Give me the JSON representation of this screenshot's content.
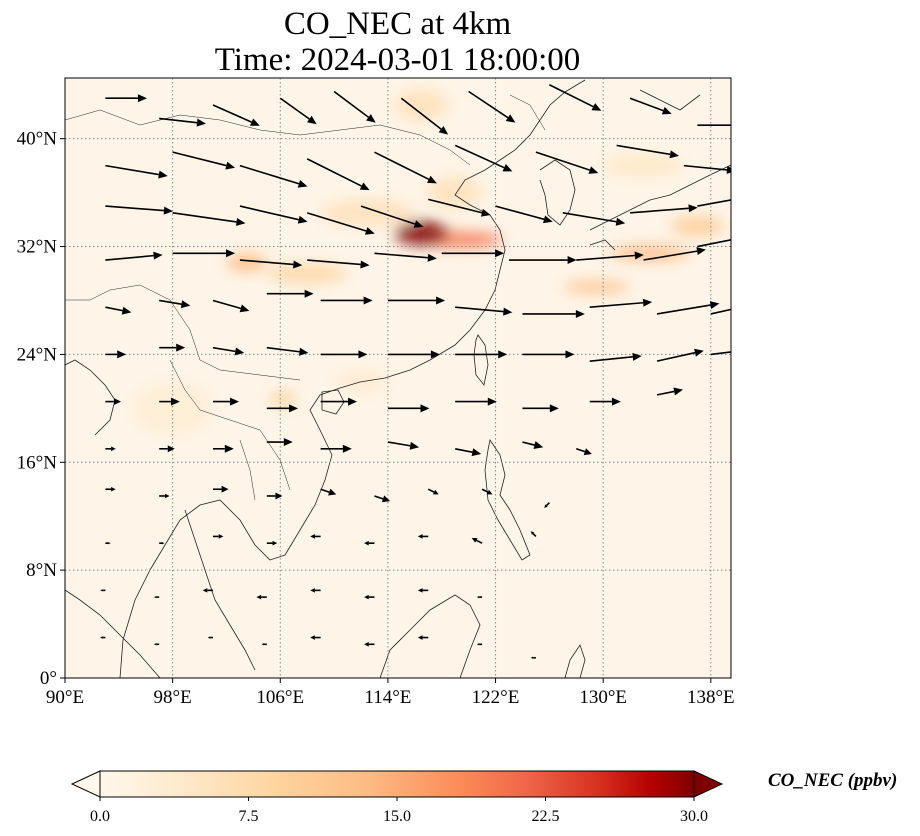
{
  "title": {
    "line1": "CO_NEC at 4km",
    "line2": "Time: 2024-03-01 18:00:00"
  },
  "colors": {
    "background_field": "#fef5e8",
    "coastline": "#222222",
    "gridline": "#888888",
    "vector": "#000000"
  },
  "chart_data": {
    "type": "heatmap",
    "variable": "CO_NEC",
    "units": "ppbv",
    "projection": "PlateCarree",
    "lon_range": [
      90,
      139.5
    ],
    "lat_range": [
      0,
      44.5
    ],
    "x_ticks": [
      "90°E",
      "98°E",
      "106°E",
      "114°E",
      "122°E",
      "130°E",
      "138°E"
    ],
    "x_tick_values": [
      90,
      98,
      106,
      114,
      122,
      130,
      138
    ],
    "y_ticks": [
      "0°",
      "8°N",
      "16°N",
      "24°N",
      "32°N",
      "40°N"
    ],
    "y_tick_values": [
      0,
      8,
      16,
      24,
      32,
      40
    ],
    "grid": true,
    "colormap": "OrRd",
    "colorbar": {
      "label": "CO_NEC (ppbv)",
      "ticks": [
        "0.0",
        "7.5",
        "15.0",
        "22.5",
        "30.0"
      ],
      "tick_values": [
        0,
        7.5,
        15,
        22.5,
        30
      ],
      "range": [
        0,
        30
      ],
      "extend": "both",
      "orientation": "horizontal"
    },
    "plumes": [
      {
        "lon": 116.5,
        "lat": 33.0,
        "value": 30,
        "spread_lon": 2.0,
        "spread_lat": 0.9
      },
      {
        "lon": 119.5,
        "lat": 32.5,
        "value": 20,
        "spread_lon": 3.0,
        "spread_lat": 0.6
      },
      {
        "lon": 103.5,
        "lat": 30.8,
        "value": 13,
        "spread_lon": 1.5,
        "spread_lat": 0.7
      },
      {
        "lon": 108.0,
        "lat": 30.0,
        "value": 8,
        "spread_lon": 3.0,
        "spread_lat": 0.8
      },
      {
        "lon": 129.5,
        "lat": 29.0,
        "value": 12,
        "spread_lon": 2.5,
        "spread_lat": 0.5
      },
      {
        "lon": 133.5,
        "lat": 31.5,
        "value": 13,
        "spread_lon": 3.0,
        "spread_lat": 0.6
      },
      {
        "lon": 137.0,
        "lat": 33.5,
        "value": 11,
        "spread_lon": 2.0,
        "spread_lat": 0.7
      },
      {
        "lon": 112.5,
        "lat": 34.5,
        "value": 6,
        "spread_lon": 3.5,
        "spread_lat": 1.0
      },
      {
        "lon": 106.2,
        "lat": 20.7,
        "value": 9,
        "spread_lon": 1.0,
        "spread_lat": 0.6
      },
      {
        "lon": 119.0,
        "lat": 36.0,
        "value": 6,
        "spread_lon": 2.0,
        "spread_lat": 1.2
      },
      {
        "lon": 133.0,
        "lat": 38.0,
        "value": 5,
        "spread_lon": 3.0,
        "spread_lat": 0.8
      },
      {
        "lon": 116.5,
        "lat": 42.5,
        "value": 6,
        "spread_lon": 2.0,
        "spread_lat": 1.2
      },
      {
        "lon": 98.0,
        "lat": 20.0,
        "value": 3,
        "spread_lon": 3.0,
        "spread_lat": 2.0
      },
      {
        "lon": 112.0,
        "lat": 22.0,
        "value": 4,
        "spread_lon": 2.0,
        "spread_lat": 0.8
      }
    ],
    "wind_vectors": [
      {
        "lon": 93,
        "lat": 43,
        "u": 8,
        "v": 0
      },
      {
        "lon": 97,
        "lat": 41.5,
        "u": 9,
        "v": -1
      },
      {
        "lon": 101,
        "lat": 42.5,
        "u": 9,
        "v": -4
      },
      {
        "lon": 106,
        "lat": 43,
        "u": 7,
        "v": -5
      },
      {
        "lon": 110,
        "lat": 43.5,
        "u": 8,
        "v": -6
      },
      {
        "lon": 115,
        "lat": 43,
        "u": 9,
        "v": -7
      },
      {
        "lon": 120,
        "lat": 43.5,
        "u": 9,
        "v": -6
      },
      {
        "lon": 126,
        "lat": 44,
        "u": 10,
        "v": -5
      },
      {
        "lon": 132,
        "lat": 43,
        "u": 8,
        "v": -3
      },
      {
        "lon": 137,
        "lat": 41,
        "u": 9,
        "v": 0
      },
      {
        "lon": 93,
        "lat": 38,
        "u": 12,
        "v": -2
      },
      {
        "lon": 98,
        "lat": 39,
        "u": 12,
        "v": -3
      },
      {
        "lon": 103,
        "lat": 38,
        "u": 13,
        "v": -4
      },
      {
        "lon": 108,
        "lat": 38.5,
        "u": 12,
        "v": -6
      },
      {
        "lon": 113,
        "lat": 39,
        "u": 12,
        "v": -6
      },
      {
        "lon": 119,
        "lat": 39.5,
        "u": 11,
        "v": -5
      },
      {
        "lon": 125,
        "lat": 39,
        "u": 12,
        "v": -4
      },
      {
        "lon": 131,
        "lat": 39.5,
        "u": 12,
        "v": -2
      },
      {
        "lon": 136,
        "lat": 38,
        "u": 10,
        "v": -1
      },
      {
        "lon": 93,
        "lat": 35,
        "u": 13,
        "v": -1
      },
      {
        "lon": 98,
        "lat": 34.5,
        "u": 14,
        "v": -2
      },
      {
        "lon": 103,
        "lat": 35,
        "u": 13,
        "v": -3
      },
      {
        "lon": 108,
        "lat": 34.5,
        "u": 13,
        "v": -4
      },
      {
        "lon": 112,
        "lat": 35,
        "u": 12,
        "v": -4
      },
      {
        "lon": 117,
        "lat": 35.5,
        "u": 12,
        "v": -3
      },
      {
        "lon": 122,
        "lat": 35,
        "u": 11,
        "v": -3
      },
      {
        "lon": 127,
        "lat": 34.5,
        "u": 12,
        "v": -2
      },
      {
        "lon": 132,
        "lat": 34.5,
        "u": 13,
        "v": 1
      },
      {
        "lon": 137,
        "lat": 35,
        "u": 11,
        "v": 2
      },
      {
        "lon": 93,
        "lat": 31,
        "u": 11,
        "v": 1
      },
      {
        "lon": 98,
        "lat": 31.5,
        "u": 12,
        "v": 0
      },
      {
        "lon": 103,
        "lat": 31,
        "u": 12,
        "v": -1
      },
      {
        "lon": 108,
        "lat": 31,
        "u": 12,
        "v": -1
      },
      {
        "lon": 113,
        "lat": 31.5,
        "u": 12,
        "v": -1
      },
      {
        "lon": 118,
        "lat": 31.5,
        "u": 12,
        "v": 0
      },
      {
        "lon": 123,
        "lat": 31,
        "u": 13,
        "v": 0
      },
      {
        "lon": 128,
        "lat": 31,
        "u": 13,
        "v": 1
      },
      {
        "lon": 133,
        "lat": 31,
        "u": 12,
        "v": 2
      },
      {
        "lon": 137,
        "lat": 32,
        "u": 10,
        "v": 2
      },
      {
        "lon": 93,
        "lat": 27.5,
        "u": 5,
        "v": -1
      },
      {
        "lon": 97,
        "lat": 28,
        "u": 6,
        "v": -1
      },
      {
        "lon": 101,
        "lat": 28,
        "u": 7,
        "v": -2
      },
      {
        "lon": 105,
        "lat": 28.5,
        "u": 9,
        "v": 0
      },
      {
        "lon": 109,
        "lat": 28,
        "u": 10,
        "v": 0
      },
      {
        "lon": 114,
        "lat": 28,
        "u": 11,
        "v": 0
      },
      {
        "lon": 119,
        "lat": 27.5,
        "u": 11,
        "v": -1
      },
      {
        "lon": 124,
        "lat": 27,
        "u": 12,
        "v": 0
      },
      {
        "lon": 129,
        "lat": 27.5,
        "u": 12,
        "v": 1
      },
      {
        "lon": 134,
        "lat": 27,
        "u": 12,
        "v": 2
      },
      {
        "lon": 138,
        "lat": 27,
        "u": 9,
        "v": 2
      },
      {
        "lon": 93,
        "lat": 24,
        "u": 4,
        "v": 0
      },
      {
        "lon": 97,
        "lat": 24.5,
        "u": 5,
        "v": 0
      },
      {
        "lon": 101,
        "lat": 24.5,
        "u": 6,
        "v": -1
      },
      {
        "lon": 105,
        "lat": 24.5,
        "u": 8,
        "v": -1
      },
      {
        "lon": 109,
        "lat": 24,
        "u": 9,
        "v": 0
      },
      {
        "lon": 114,
        "lat": 24,
        "u": 10,
        "v": 0
      },
      {
        "lon": 119,
        "lat": 24,
        "u": 10,
        "v": 0
      },
      {
        "lon": 124,
        "lat": 24,
        "u": 10,
        "v": 0
      },
      {
        "lon": 129,
        "lat": 23.5,
        "u": 10,
        "v": 1
      },
      {
        "lon": 134,
        "lat": 23.5,
        "u": 9,
        "v": 2
      },
      {
        "lon": 138,
        "lat": 24,
        "u": 8,
        "v": 1
      },
      {
        "lon": 93,
        "lat": 20.5,
        "u": 3,
        "v": 0
      },
      {
        "lon": 97,
        "lat": 20.5,
        "u": 4,
        "v": 0
      },
      {
        "lon": 101,
        "lat": 20.5,
        "u": 5,
        "v": 0
      },
      {
        "lon": 105,
        "lat": 20,
        "u": 6,
        "v": 0
      },
      {
        "lon": 109,
        "lat": 20.5,
        "u": 7,
        "v": 0
      },
      {
        "lon": 114,
        "lat": 20,
        "u": 8,
        "v": 0
      },
      {
        "lon": 119,
        "lat": 20.5,
        "u": 8,
        "v": 0
      },
      {
        "lon": 124,
        "lat": 20,
        "u": 7,
        "v": 0
      },
      {
        "lon": 129,
        "lat": 20.5,
        "u": 6,
        "v": 0
      },
      {
        "lon": 134,
        "lat": 21,
        "u": 5,
        "v": 1
      },
      {
        "lon": 93,
        "lat": 17,
        "u": 2,
        "v": 0
      },
      {
        "lon": 97,
        "lat": 17,
        "u": 3,
        "v": 0
      },
      {
        "lon": 101,
        "lat": 17,
        "u": 4,
        "v": 0
      },
      {
        "lon": 105,
        "lat": 17.5,
        "u": 5,
        "v": 0
      },
      {
        "lon": 109,
        "lat": 17,
        "u": 6,
        "v": 0
      },
      {
        "lon": 114,
        "lat": 17.5,
        "u": 6,
        "v": -1
      },
      {
        "lon": 119,
        "lat": 17,
        "u": 5,
        "v": -1
      },
      {
        "lon": 124,
        "lat": 17.5,
        "u": 4,
        "v": -1
      },
      {
        "lon": 128,
        "lat": 17,
        "u": 3,
        "v": -1
      },
      {
        "lon": 93,
        "lat": 14,
        "u": 2,
        "v": 0
      },
      {
        "lon": 97,
        "lat": 13.5,
        "u": 2,
        "v": 0
      },
      {
        "lon": 101,
        "lat": 14,
        "u": 3,
        "v": 0
      },
      {
        "lon": 105,
        "lat": 13.5,
        "u": 3,
        "v": 0
      },
      {
        "lon": 109,
        "lat": 14,
        "u": 3,
        "v": -1
      },
      {
        "lon": 113,
        "lat": 13.5,
        "u": 3,
        "v": -1
      },
      {
        "lon": 117,
        "lat": 14,
        "u": 2,
        "v": -1
      },
      {
        "lon": 121,
        "lat": 14,
        "u": 2,
        "v": -1
      },
      {
        "lon": 126,
        "lat": 13,
        "u": -1,
        "v": -1
      },
      {
        "lon": 93,
        "lat": 10,
        "u": 1,
        "v": 0
      },
      {
        "lon": 97,
        "lat": 10,
        "u": 1,
        "v": 0
      },
      {
        "lon": 101,
        "lat": 10.5,
        "u": 2,
        "v": 0
      },
      {
        "lon": 105,
        "lat": 10,
        "u": 2,
        "v": 0
      },
      {
        "lon": 109,
        "lat": 10.5,
        "u": -2,
        "v": 0
      },
      {
        "lon": 113,
        "lat": 10,
        "u": -2,
        "v": 0
      },
      {
        "lon": 117,
        "lat": 10.5,
        "u": -2,
        "v": 0
      },
      {
        "lon": 121,
        "lat": 10,
        "u": -2,
        "v": 1
      },
      {
        "lon": 125,
        "lat": 10.5,
        "u": -1,
        "v": 1
      },
      {
        "lon": 93,
        "lat": 6.5,
        "u": -1,
        "v": 0
      },
      {
        "lon": 97,
        "lat": 6,
        "u": -1,
        "v": 0
      },
      {
        "lon": 101,
        "lat": 6.5,
        "u": -2,
        "v": 0
      },
      {
        "lon": 105,
        "lat": 6,
        "u": -2,
        "v": 0
      },
      {
        "lon": 109,
        "lat": 6.5,
        "u": -2,
        "v": 0
      },
      {
        "lon": 113,
        "lat": 6,
        "u": -2,
        "v": 0
      },
      {
        "lon": 117,
        "lat": 6.5,
        "u": -2,
        "v": 0
      },
      {
        "lon": 121,
        "lat": 6,
        "u": -1,
        "v": 0
      },
      {
        "lon": 93,
        "lat": 3,
        "u": -1,
        "v": 0
      },
      {
        "lon": 97,
        "lat": 2.5,
        "u": -1,
        "v": 0
      },
      {
        "lon": 101,
        "lat": 3,
        "u": -1,
        "v": 0
      },
      {
        "lon": 105,
        "lat": 2.5,
        "u": -1,
        "v": 0
      },
      {
        "lon": 109,
        "lat": 3,
        "u": -2,
        "v": 0
      },
      {
        "lon": 113,
        "lat": 2.5,
        "u": -2,
        "v": 0
      },
      {
        "lon": 117,
        "lat": 3,
        "u": -2,
        "v": 0
      },
      {
        "lon": 121,
        "lat": 2.5,
        "u": -1,
        "v": 0
      },
      {
        "lon": 125,
        "lat": 1.5,
        "u": -1,
        "v": 0
      }
    ]
  }
}
